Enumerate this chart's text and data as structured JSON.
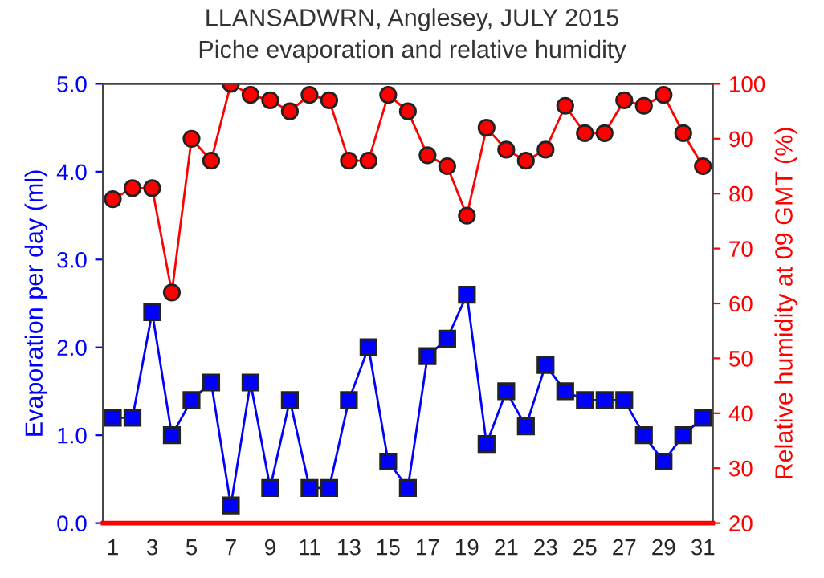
{
  "chart_data": {
    "type": "line",
    "title": "LLANSADWRN, Anglesey, JULY 2015",
    "subtitle": "Piche evaporation and relative humidity",
    "ylabel": "Evaporation per day (ml)",
    "y2label": "Relative humidity at 09 GMT (%)",
    "x": [
      1,
      2,
      3,
      4,
      5,
      6,
      7,
      8,
      9,
      10,
      11,
      12,
      13,
      14,
      15,
      16,
      17,
      18,
      19,
      20,
      21,
      22,
      23,
      24,
      25,
      26,
      27,
      28,
      29,
      30,
      31
    ],
    "xlim": [
      0.5,
      31.5
    ],
    "xticks": [
      1,
      3,
      5,
      7,
      9,
      11,
      13,
      15,
      17,
      19,
      21,
      23,
      25,
      27,
      29,
      31
    ],
    "ylim": [
      0,
      5
    ],
    "yticks": [
      {
        "value": 0,
        "label": "0.0"
      },
      {
        "value": 1,
        "label": "1.0"
      },
      {
        "value": 2,
        "label": "2.0"
      },
      {
        "value": 3,
        "label": "3.0"
      },
      {
        "value": 4,
        "label": "4.0"
      },
      {
        "value": 5,
        "label": "5.0"
      }
    ],
    "y2lim": [
      20,
      100
    ],
    "y2ticks": [
      20,
      30,
      40,
      50,
      60,
      70,
      80,
      90,
      100
    ],
    "series": [
      {
        "color": "#0000ff",
        "marker": "square",
        "values": [
          1.2,
          1.2,
          2.4,
          1.0,
          1.4,
          1.6,
          0.2,
          1.6,
          0.4,
          1.4,
          0.4,
          0.4,
          1.4,
          2.0,
          0.7,
          0.4,
          1.9,
          2.1,
          2.6,
          0.9,
          1.5,
          1.1,
          1.8,
          1.5,
          1.4,
          1.4,
          1.4,
          1.0,
          0.7,
          1.0,
          1.2
        ]
      },
      {
        "color": "#ff0000",
        "marker": "circle",
        "axis": "y2",
        "values": [
          79,
          81,
          81,
          62,
          90,
          86,
          100,
          98,
          97,
          95,
          98,
          97,
          86,
          86,
          98,
          95,
          87,
          85,
          76,
          92,
          88,
          86,
          88,
          96,
          91,
          91,
          97,
          96,
          98,
          91,
          85
        ]
      }
    ],
    "grid": false,
    "legend": false
  }
}
